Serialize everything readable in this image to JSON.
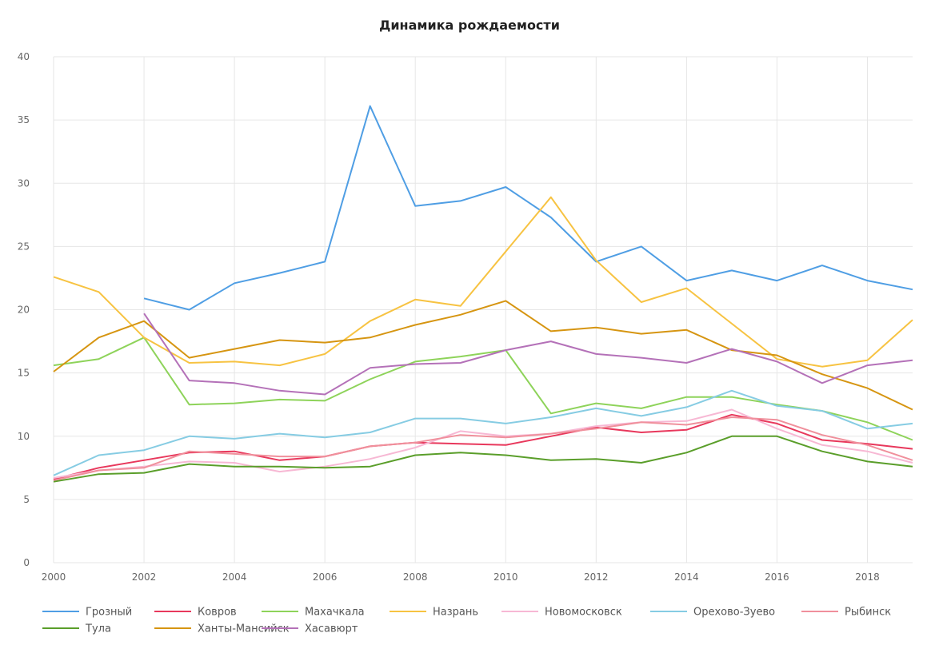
{
  "chart_data": {
    "type": "line",
    "title": "Динамика рождаемости",
    "xlabel": "",
    "ylabel": "",
    "x": [
      2000,
      2001,
      2002,
      2003,
      2004,
      2005,
      2006,
      2007,
      2008,
      2009,
      2010,
      2011,
      2012,
      2013,
      2014,
      2015,
      2016,
      2017,
      2018,
      2019
    ],
    "xlim": [
      2000,
      2019
    ],
    "ylim": [
      0,
      40
    ],
    "x_ticks": [
      2000,
      2002,
      2004,
      2006,
      2008,
      2010,
      2012,
      2014,
      2016,
      2018
    ],
    "y_ticks": [
      0,
      5,
      10,
      15,
      20,
      25,
      30,
      35,
      40
    ],
    "grid": true,
    "legend_position": "bottom",
    "series": [
      {
        "name": "Грозный",
        "color": "#4f9ee4",
        "values": [
          null,
          null,
          20.9,
          20.0,
          22.1,
          22.9,
          23.8,
          36.1,
          28.2,
          28.6,
          29.7,
          27.3,
          23.8,
          25.0,
          22.3,
          23.1,
          22.3,
          23.5,
          22.3,
          21.6
        ]
      },
      {
        "name": "Ковров",
        "color": "#e8385c",
        "values": [
          6.6,
          7.5,
          8.1,
          8.7,
          8.8,
          8.1,
          8.4,
          9.2,
          9.5,
          9.4,
          9.3,
          10.0,
          10.7,
          10.3,
          10.5,
          11.7,
          11.0,
          9.7,
          9.4,
          9.0
        ]
      },
      {
        "name": "Махачкала",
        "color": "#8ed35a",
        "values": [
          15.6,
          16.1,
          17.8,
          12.5,
          12.6,
          12.9,
          12.8,
          14.5,
          15.9,
          16.3,
          16.8,
          11.8,
          12.6,
          12.2,
          13.1,
          13.1,
          12.5,
          12.0,
          11.1,
          9.7
        ]
      },
      {
        "name": "Назрань",
        "color": "#f7c342",
        "values": [
          22.6,
          21.4,
          17.8,
          15.8,
          15.9,
          15.6,
          16.5,
          19.1,
          20.8,
          20.3,
          24.6,
          28.9,
          23.9,
          20.6,
          21.7,
          18.9,
          16.1,
          15.5,
          16.0,
          19.2
        ]
      },
      {
        "name": "Новомосковск",
        "color": "#f7b8d4",
        "values": [
          6.7,
          7.3,
          7.6,
          8.0,
          7.9,
          7.2,
          7.6,
          8.2,
          9.1,
          10.4,
          10.0,
          10.2,
          10.8,
          11.1,
          11.2,
          12.1,
          10.6,
          9.3,
          8.8,
          7.9
        ]
      },
      {
        "name": "Орехово-Зуево",
        "color": "#86cce3",
        "values": [
          6.9,
          8.5,
          8.9,
          10.0,
          9.8,
          10.2,
          9.9,
          10.3,
          11.4,
          11.4,
          11.0,
          11.5,
          12.2,
          11.6,
          12.3,
          13.6,
          12.4,
          12.0,
          10.6,
          11.0
        ]
      },
      {
        "name": "Рыбинск",
        "color": "#f0909c",
        "values": [
          6.5,
          7.3,
          7.5,
          8.8,
          8.6,
          8.4,
          8.4,
          9.2,
          9.5,
          10.1,
          9.9,
          10.2,
          10.6,
          11.1,
          10.9,
          11.5,
          11.3,
          10.1,
          9.3,
          8.1
        ]
      },
      {
        "name": "Тула",
        "color": "#5a9e2a",
        "values": [
          6.4,
          7.0,
          7.1,
          7.8,
          7.6,
          7.6,
          7.5,
          7.6,
          8.5,
          8.7,
          8.5,
          8.1,
          8.2,
          7.9,
          8.7,
          10.0,
          10.0,
          8.8,
          8.0,
          7.6
        ]
      },
      {
        "name": "Ханты-Мансийск",
        "color": "#d69511",
        "values": [
          15.1,
          17.8,
          19.1,
          16.2,
          16.9,
          17.6,
          17.4,
          17.8,
          18.8,
          19.6,
          20.7,
          18.3,
          18.6,
          18.1,
          18.4,
          16.8,
          16.4,
          14.9,
          13.8,
          12.1
        ]
      },
      {
        "name": "Хасавюрт",
        "color": "#b471b8",
        "values": [
          null,
          null,
          19.7,
          14.4,
          14.2,
          13.6,
          13.3,
          15.4,
          15.7,
          15.8,
          16.8,
          17.5,
          16.5,
          16.2,
          15.8,
          16.9,
          15.9,
          14.2,
          15.6,
          16.0
        ]
      }
    ]
  }
}
